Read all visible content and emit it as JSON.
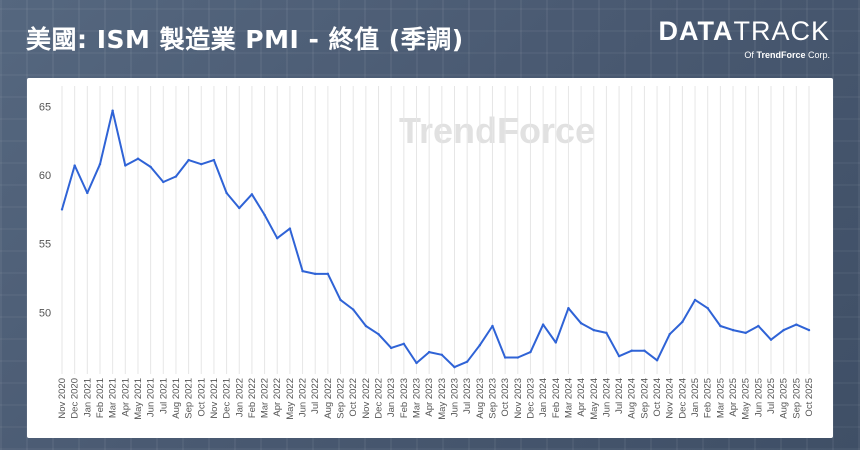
{
  "header": {
    "title": "美國: ISM 製造業 PMI - 終值 (季調)",
    "brand_part1": "DATA",
    "brand_part2": "TRACK",
    "brand_sub_prefix": "Of",
    "brand_sub_name": "TrendForce",
    "brand_sub_suffix": "Corp."
  },
  "watermark": "TrendForce",
  "colors": {
    "line": "#2f63d6",
    "grid": "#e6e6e6",
    "axis_text": "#555555",
    "background": "#4d5e76"
  },
  "chart_data": {
    "type": "line",
    "title": "",
    "xlabel": "",
    "ylabel": "",
    "ylim": [
      45.5,
      66.5
    ],
    "yticks": [
      50,
      55,
      60,
      65
    ],
    "grid": "vertical",
    "categories": [
      "Nov 2020",
      "Dec 2020",
      "Jan 2021",
      "Feb 2021",
      "Mar 2021",
      "Apr 2021",
      "May 2021",
      "Jun 2021",
      "Jul 2021",
      "Aug 2021",
      "Sep 2021",
      "Oct 2021",
      "Nov 2021",
      "Dec 2021",
      "Jan 2022",
      "Feb 2022",
      "Mar 2022",
      "Apr 2022",
      "May 2022",
      "Jun 2022",
      "Jul 2022",
      "Aug 2022",
      "Sep 2022",
      "Oct 2022",
      "Nov 2022",
      "Dec 2022",
      "Jan 2023",
      "Feb 2023",
      "Mar 2023",
      "Apr 2023",
      "May 2023",
      "Jun 2023",
      "Jul 2023",
      "Aug 2023",
      "Sep 2023",
      "Oct 2023",
      "Nov 2023",
      "Dec 2023",
      "Jan 2024",
      "Feb 2024",
      "Mar 2024",
      "Apr 2024",
      "May 2024",
      "Jun 2024",
      "Jul 2024",
      "Aug 2024",
      "Sep 2024",
      "Oct 2024",
      "Nov 2024",
      "Dec 2024",
      "Jan 2025",
      "Feb 2025",
      "Mar 2025",
      "Apr 2025",
      "May 2025",
      "Jun 2025",
      "Jul 2025",
      "Aug 2025",
      "Sep 2025",
      "Oct 2025"
    ],
    "series": [
      {
        "name": "",
        "values": [
          57.5,
          60.7,
          58.7,
          60.8,
          64.7,
          60.7,
          61.2,
          60.6,
          59.5,
          59.9,
          61.1,
          60.8,
          61.1,
          58.7,
          57.6,
          58.6,
          57.1,
          55.4,
          56.1,
          53.0,
          52.8,
          52.8,
          50.9,
          50.2,
          49.0,
          48.4,
          47.4,
          47.7,
          46.3,
          47.1,
          46.9,
          46.0,
          46.4,
          47.6,
          49.0,
          46.7,
          46.7,
          47.1,
          49.1,
          47.8,
          50.3,
          49.2,
          48.7,
          48.5,
          46.8,
          47.2,
          47.2,
          46.5,
          48.4,
          49.3,
          50.9,
          50.3,
          49.0,
          48.7,
          48.5,
          49.0,
          48.0,
          48.7,
          49.1,
          48.7
        ]
      }
    ]
  }
}
